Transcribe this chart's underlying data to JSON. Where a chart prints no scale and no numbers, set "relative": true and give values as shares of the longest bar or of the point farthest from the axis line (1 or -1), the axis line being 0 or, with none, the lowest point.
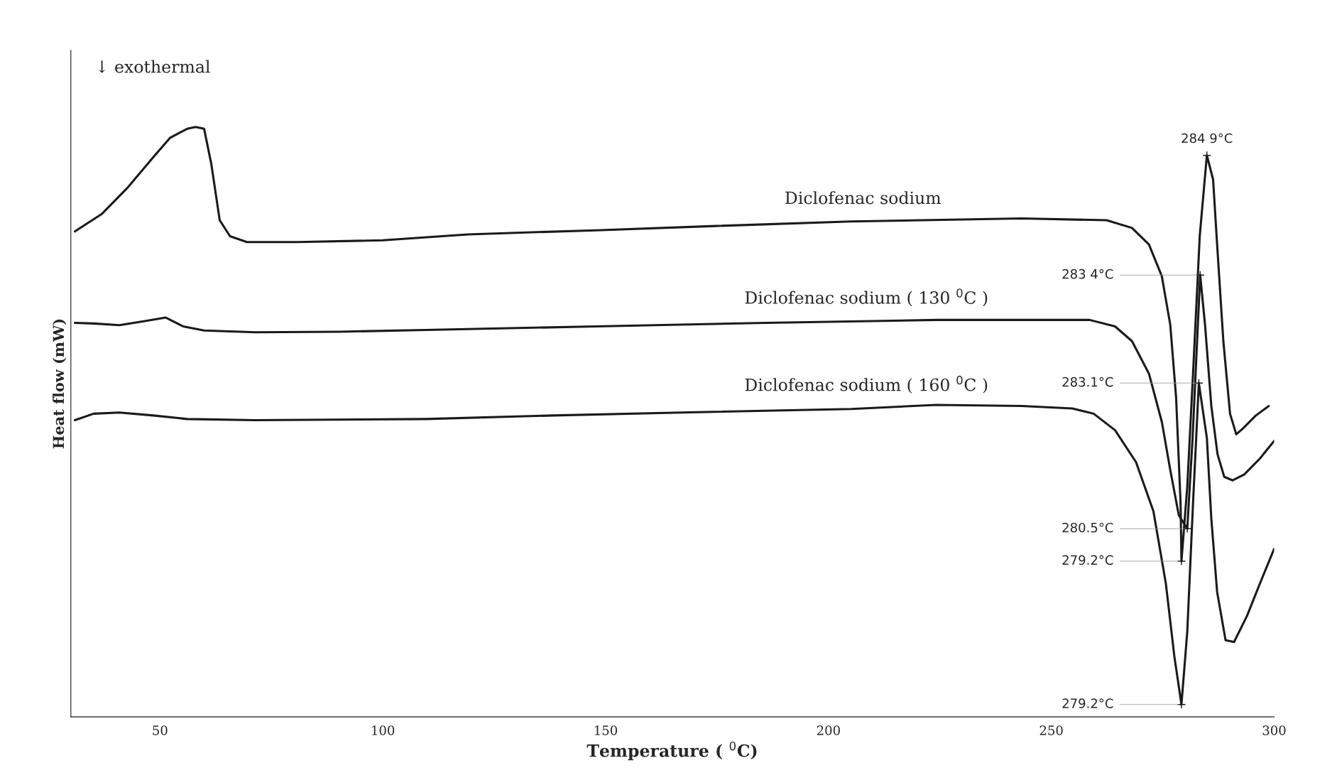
{
  "chart_data": {
    "type": "line",
    "relative": true,
    "xlabel": "Temperature ( $^{0}$C)",
    "ylabel": "Heat flow (mW)",
    "xlim": [
      30,
      300
    ],
    "xticks": [
      50,
      100,
      150,
      200,
      250,
      300
    ],
    "grid": false,
    "legend": false,
    "marker": "none",
    "line_style": "solid",
    "series": [
      {
        "name": "Diclofenac sodium",
        "color": "#1a1a1a",
        "x": [
          30.9,
          37.0,
          42.7,
          48.5,
          52.3,
          56.1,
          58.0,
          59.9,
          61.5,
          63.4,
          65.7,
          69.5,
          80.9,
          100,
          119.1,
          147.8,
          173.6,
          205.1,
          243.3,
          262.4,
          268.1,
          271.9,
          274.8,
          276.7,
          278.0,
          279.0,
          279.2,
          280.5,
          281.8,
          283.3,
          284.9,
          286.3,
          287.2,
          288.6,
          290.1,
          291.5,
          293.0,
          295.9,
          298.8
        ],
        "values": [
          0.823,
          0.853,
          0.897,
          0.949,
          0.982,
          0.997,
          1.0,
          0.997,
          0.938,
          0.842,
          0.815,
          0.805,
          0.805,
          0.808,
          0.818,
          0.825,
          0.832,
          0.84,
          0.845,
          0.842,
          0.829,
          0.801,
          0.747,
          0.664,
          0.541,
          0.363,
          0.264,
          0.39,
          0.582,
          0.815,
          0.952,
          0.911,
          0.801,
          0.637,
          0.514,
          0.479,
          0.489,
          0.511,
          0.527
        ]
      },
      {
        "name": "Diclofenac sodium ( 130 $^{0}$C )",
        "color": "#1a1a1a",
        "x": [
          30.9,
          35.1,
          40.9,
          46.6,
          51.3,
          55.2,
          59.9,
          71.4,
          90.5,
          109.6,
          147.8,
          186.0,
          224.2,
          258.6,
          264.3,
          268.1,
          271.9,
          274.8,
          276.7,
          278.6,
          280.5,
          281.7,
          283.4,
          284.5,
          285.9,
          287.3,
          288.8,
          290.7,
          293.3,
          296.8,
          300
        ],
        "values": [
          0.668,
          0.667,
          0.664,
          0.671,
          0.677,
          0.662,
          0.655,
          0.652,
          0.653,
          0.656,
          0.662,
          0.668,
          0.673,
          0.673,
          0.662,
          0.637,
          0.582,
          0.5,
          0.418,
          0.342,
          0.319,
          0.473,
          0.749,
          0.664,
          0.527,
          0.445,
          0.407,
          0.401,
          0.411,
          0.438,
          0.468
        ]
      },
      {
        "name": "Diclofenac sodium ( 160 $^{0}$C )",
        "color": "#1a1a1a",
        "x": [
          30.9,
          35.1,
          40.9,
          48.5,
          56.1,
          71.4,
          109.6,
          138.2,
          166.9,
          205.1,
          224.2,
          243.3,
          254.7,
          259.5,
          264.3,
          269.0,
          272.9,
          275.7,
          277.6,
          279.2,
          280.5,
          281.8,
          283.1,
          284.9,
          285.9,
          287.2,
          289.1,
          291.0,
          293.9,
          296.8,
          300
        ],
        "values": [
          0.503,
          0.514,
          0.516,
          0.511,
          0.505,
          0.503,
          0.505,
          0.511,
          0.516,
          0.522,
          0.529,
          0.527,
          0.523,
          0.514,
          0.486,
          0.432,
          0.349,
          0.226,
          0.103,
          0.021,
          0.144,
          0.363,
          0.566,
          0.473,
          0.336,
          0.212,
          0.13,
          0.127,
          0.171,
          0.226,
          0.285
        ]
      }
    ],
    "annotations": [
      "↓ exothermal",
      {
        "text": "284 9°C",
        "x": 284.9,
        "y": 0.952
      },
      {
        "text": "279.2°C",
        "x": 279.2,
        "y": 0.264
      },
      {
        "text": "283 4°C",
        "x": 283.4,
        "y": 0.749
      },
      {
        "text": "280.5°C",
        "x": 280.5,
        "y": 0.319
      },
      {
        "text": "283.1°C",
        "x": 283.1,
        "y": 0.566
      },
      {
        "text": "279.2°C",
        "x": 279.2,
        "y": 0.021
      }
    ]
  }
}
